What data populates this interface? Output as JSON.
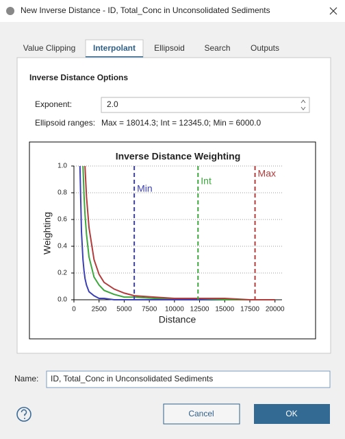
{
  "window": {
    "title": "New Inverse Distance - ID, Total_Conc in Unconsolidated Sediments"
  },
  "tabs": [
    "Value Clipping",
    "Interpolant",
    "Ellipsoid",
    "Search",
    "Outputs"
  ],
  "selected_tab": 1,
  "panel": {
    "section_title": "Inverse Distance Options",
    "exponent_label": "Exponent:",
    "exponent_value": "2.0",
    "ellipsoid_label": "Ellipsoid ranges:",
    "ellipsoid_value": "Max = 18014.3; Int = 12345.0; Min = 6000.0"
  },
  "chart_data": {
    "type": "line",
    "title": "Inverse Distance Weighting",
    "x_label": "Distance",
    "y_label": "Weighting",
    "x": [
      500,
      600,
      750,
      900,
      1000,
      1100,
      1250,
      1500,
      2000,
      2500,
      3000,
      4000,
      5000,
      6000,
      8000,
      10000,
      12500,
      15000,
      17500,
      20000
    ],
    "series": [
      {
        "color": "#3b3fb3",
        "values": [
          null,
          1.0,
          0.51,
          0.3,
          0.22,
          0.16,
          0.11,
          0.06,
          0.03,
          0.01,
          0.01,
          0.0,
          0.0,
          0.0,
          0.0,
          0.0,
          0.0,
          0.0,
          0.0,
          0.0
        ]
      },
      {
        "color": "#3ca63c",
        "values": [
          null,
          null,
          null,
          1.0,
          0.79,
          0.64,
          0.49,
          0.32,
          0.17,
          0.11,
          0.07,
          0.04,
          0.02,
          0.02,
          0.01,
          0.01,
          0.01,
          0.0,
          0.0,
          0.0
        ]
      },
      {
        "color": "#b23b3b",
        "values": [
          null,
          null,
          null,
          null,
          null,
          1.0,
          0.77,
          0.54,
          0.3,
          0.19,
          0.13,
          0.08,
          0.05,
          0.03,
          0.02,
          0.01,
          0.01,
          0.01,
          0.0,
          0.0
        ]
      }
    ],
    "markers": [
      {
        "name": "Min",
        "x": 6000,
        "color": "#3b3fb3"
      },
      {
        "name": "Int",
        "x": 12345,
        "color": "#3ca63c"
      },
      {
        "name": "Max",
        "x": 18014.3,
        "color": "#b23b3b"
      }
    ],
    "xlim": [
      0,
      20700
    ],
    "ylim": [
      0,
      1
    ],
    "xticks": [
      0,
      2500,
      5000,
      7500,
      10000,
      12500,
      15000,
      17500,
      20000
    ],
    "yticks": [
      {
        "value": 0,
        "label": "0.0"
      },
      {
        "value": 0.2,
        "label": "0.2"
      },
      {
        "value": 0.4,
        "label": "0.4"
      },
      {
        "value": 0.6,
        "label": "0.6"
      },
      {
        "value": 0.8,
        "label": "0.8"
      },
      {
        "value": 1,
        "label": "1.0"
      }
    ],
    "grid": true
  },
  "name_field": {
    "label": "Name:",
    "value": "ID, Total_Conc in Unconsolidated Sediments"
  },
  "buttons": {
    "cancel": "Cancel",
    "ok": "OK"
  }
}
